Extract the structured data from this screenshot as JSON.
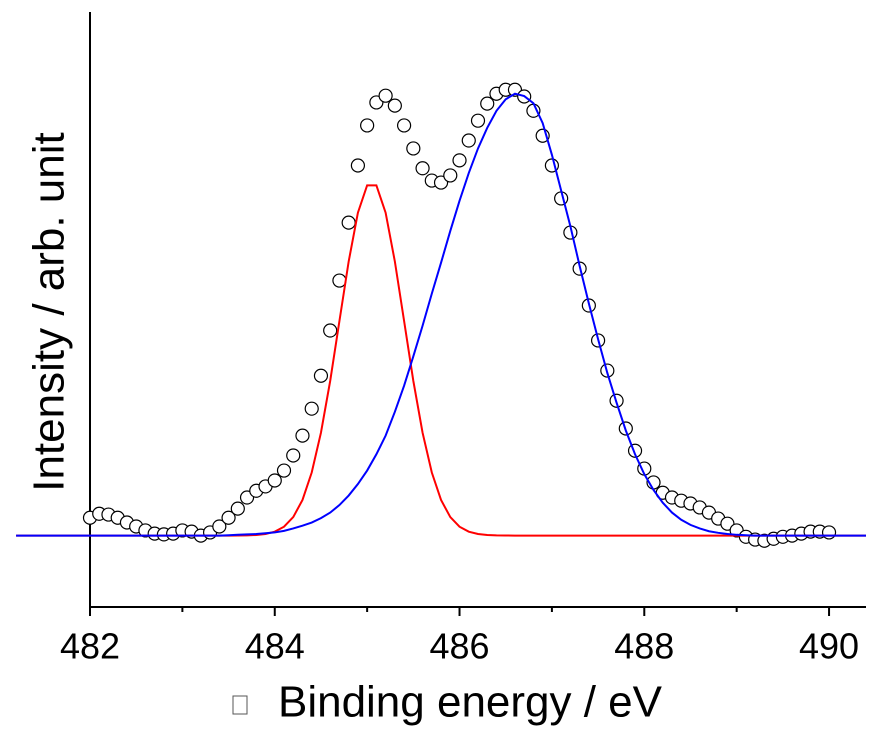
{
  "chart_data": {
    "type": "scatter",
    "xlabel": "Binding energy / eV",
    "ylabel": "Intensity / arb. unit",
    "xlim": [
      482,
      490.4
    ],
    "xticks": [
      482,
      484,
      486,
      488,
      490
    ],
    "xticks_minor": [
      483,
      485,
      487,
      489
    ],
    "ylim": [
      -0.18,
      1.32
    ],
    "x": [
      481.2,
      481.3,
      481.4,
      481.5,
      481.6,
      481.7,
      481.8,
      481.9,
      482.0,
      482.1,
      482.2,
      482.3,
      482.4,
      482.5,
      482.6,
      482.7,
      482.8,
      482.9,
      483.0,
      483.1,
      483.2,
      483.3,
      483.4,
      483.5,
      483.6,
      483.7,
      483.8,
      483.9,
      484.0,
      484.1,
      484.2,
      484.3,
      484.4,
      484.5,
      484.6,
      484.7,
      484.8,
      484.9,
      485.0,
      485.1,
      485.2,
      485.3,
      485.4,
      485.5,
      485.6,
      485.7,
      485.8,
      485.9,
      486.0,
      486.1,
      486.2,
      486.3,
      486.4,
      486.5,
      486.6,
      486.7,
      486.8,
      486.9,
      487.0,
      487.1,
      487.2,
      487.3,
      487.4,
      487.5,
      487.6,
      487.7,
      487.8,
      487.9,
      488.0,
      488.1,
      488.2,
      488.3,
      488.4,
      488.5,
      488.6,
      488.7,
      488.8,
      488.9,
      489.0,
      489.1,
      489.2,
      489.3,
      489.4,
      489.5,
      489.6,
      489.7,
      489.8,
      489.9,
      490.0,
      490.1,
      490.2,
      490.3,
      490.4
    ],
    "series": [
      {
        "style": "open-circle",
        "color": "#000000",
        "values": [
          null,
          null,
          null,
          null,
          null,
          null,
          null,
          null,
          0.045,
          0.055,
          0.053,
          0.045,
          0.033,
          0.023,
          0.013,
          0.005,
          0.003,
          0.005,
          0.013,
          0.01,
          0,
          0.008,
          0.023,
          0.045,
          0.068,
          0.096,
          0.113,
          0.124,
          0.139,
          0.164,
          0.202,
          0.252,
          0.32,
          0.403,
          0.517,
          0.643,
          0.789,
          0.933,
          1.034,
          1.092,
          1.109,
          1.084,
          1.034,
          0.976,
          0.926,
          0.895,
          0.89,
          0.908,
          0.946,
          0.996,
          1.046,
          1.089,
          1.114,
          1.124,
          1.124,
          1.107,
          1.071,
          1.008,
          0.933,
          0.85,
          0.764,
          0.673,
          0.58,
          0.492,
          0.416,
          0.34,
          0.27,
          0.214,
          0.169,
          0.134,
          0.108,
          0.096,
          0.088,
          0.081,
          0.071,
          0.058,
          0.043,
          0.03,
          0.013,
          -0.003,
          -0.01,
          -0.013,
          -0.008,
          -0.003,
          0,
          0.005,
          0.01,
          0.01,
          0.008,
          null,
          null,
          null,
          null
        ]
      },
      {
        "style": "line",
        "color": "#ff0000",
        "values": [
          0,
          0,
          0,
          0,
          0,
          0,
          0,
          0,
          0,
          0,
          0,
          0,
          0,
          0,
          0,
          0,
          0,
          0,
          0,
          0,
          0,
          0,
          0,
          0,
          0.0002,
          0.0005,
          0.0015,
          0.004,
          0.0099,
          0.0224,
          0.0467,
          0.0898,
          0.159,
          0.2595,
          0.39,
          0.541,
          0.691,
          0.814,
          0.883,
          0.883,
          0.814,
          0.691,
          0.541,
          0.39,
          0.2595,
          0.159,
          0.0898,
          0.0467,
          0.0224,
          0.0099,
          0.004,
          0.0015,
          0.0005,
          0.0002,
          0,
          0,
          0,
          0,
          0,
          0,
          0,
          0,
          0,
          0,
          0,
          0,
          0,
          0,
          0,
          0,
          0,
          0,
          0,
          0,
          0,
          0,
          0,
          0,
          0,
          0,
          0,
          0,
          0,
          0,
          0,
          0,
          0,
          0,
          0,
          0,
          0,
          0,
          0
        ]
      },
      {
        "style": "line",
        "color": "#0000ff",
        "values": [
          0,
          0,
          0,
          0,
          0,
          0,
          0,
          0,
          0,
          0,
          0,
          0,
          0,
          0,
          0,
          0,
          0,
          0,
          0,
          0,
          0,
          0,
          0,
          0.001,
          0.002,
          0.003,
          0.004,
          0.006,
          0.008,
          0.012,
          0.018,
          0.025,
          0.033,
          0.044,
          0.058,
          0.077,
          0.101,
          0.13,
          0.164,
          0.205,
          0.252,
          0.312,
          0.378,
          0.452,
          0.529,
          0.61,
          0.688,
          0.768,
          0.844,
          0.914,
          0.976,
          1.028,
          1.071,
          1.1,
          1.114,
          1.108,
          1.09,
          1.04,
          0.96,
          0.87,
          0.78,
          0.68,
          0.585,
          0.495,
          0.41,
          0.335,
          0.265,
          0.205,
          0.155,
          0.115,
          0.083,
          0.058,
          0.04,
          0.027,
          0.018,
          0.011,
          0.007,
          0.004,
          0.002,
          0.001,
          0,
          0,
          0,
          0,
          0,
          0,
          0,
          0,
          0,
          0,
          0,
          0,
          0
        ]
      }
    ]
  }
}
